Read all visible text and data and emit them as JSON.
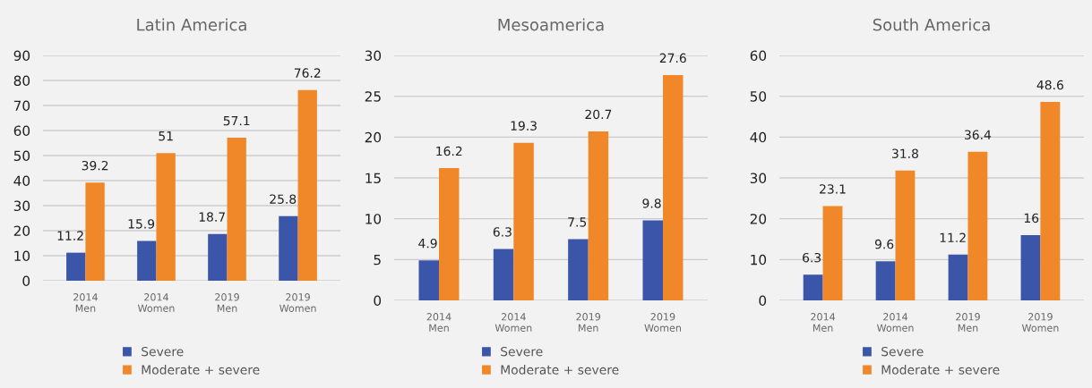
{
  "chart_data": [
    {
      "type": "bar",
      "title": "Latin America",
      "categories": [
        "2014\nMen",
        "2014\nWomen",
        "2019\nMen",
        "2019\nWomen"
      ],
      "series": [
        {
          "name": "Severe",
          "color": "#3b55a8",
          "values": [
            11.2,
            15.9,
            18.7,
            25.8
          ]
        },
        {
          "name": "Moderate + severe",
          "color": "#f0882a",
          "values": [
            39.2,
            51,
            57.1,
            76.2
          ]
        }
      ],
      "ylim": [
        0,
        90
      ],
      "yticks": [
        0,
        10,
        20,
        30,
        40,
        50,
        60,
        70,
        80,
        90
      ],
      "grid": "y",
      "legend": "bottom",
      "data_labels": true
    },
    {
      "type": "bar",
      "title": "Mesoamerica",
      "categories": [
        "2014\nMen",
        "2014\nWomen",
        "2019\nMen",
        "2019\nWomen"
      ],
      "series": [
        {
          "name": "Severe",
          "color": "#3b55a8",
          "values": [
            4.9,
            6.3,
            7.5,
            9.8
          ]
        },
        {
          "name": "Moderate + severe",
          "color": "#f0882a",
          "values": [
            16.2,
            19.3,
            20.7,
            27.6
          ]
        }
      ],
      "ylim": [
        0,
        30
      ],
      "yticks": [
        0,
        5,
        10,
        15,
        20,
        25,
        30
      ],
      "grid": "y",
      "legend": "bottom",
      "data_labels": true
    },
    {
      "type": "bar",
      "title": "South America",
      "categories": [
        "2014\nMen",
        "2014\nWomen",
        "2019\nMen",
        "2019\nWomen"
      ],
      "series": [
        {
          "name": "Severe",
          "color": "#3b55a8",
          "values": [
            6.3,
            9.6,
            11.2,
            16
          ]
        },
        {
          "name": "Moderate + severe",
          "color": "#f0882a",
          "values": [
            23.1,
            31.8,
            36.4,
            48.6
          ]
        }
      ],
      "ylim": [
        0,
        60
      ],
      "yticks": [
        0,
        10,
        20,
        30,
        40,
        50,
        60
      ],
      "grid": "y",
      "legend": "bottom",
      "data_labels": true
    }
  ]
}
